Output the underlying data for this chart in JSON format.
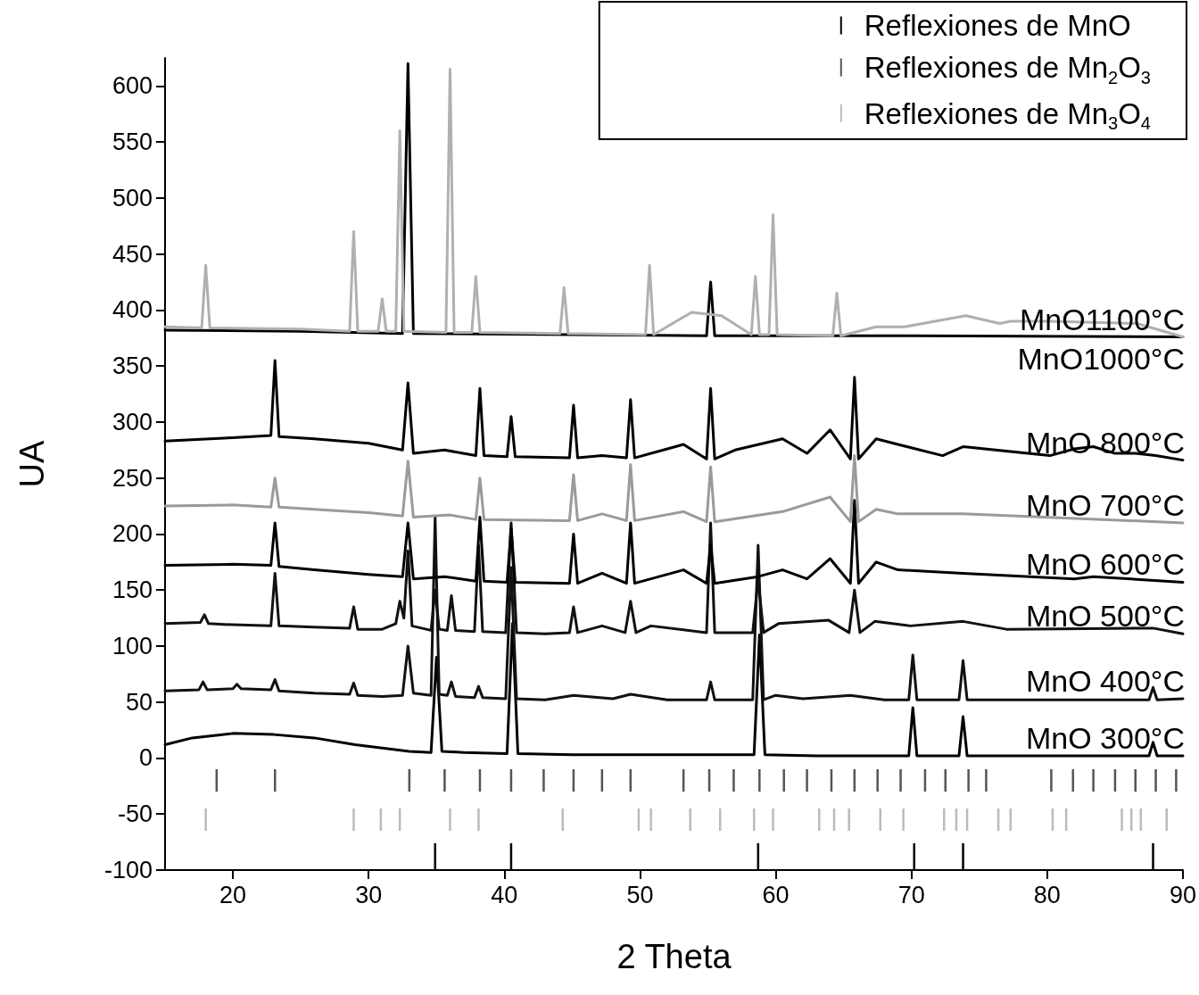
{
  "chart_data": {
    "type": "line",
    "xlabel": "2 Theta",
    "ylabel": "UA",
    "xlim": [
      15,
      90
    ],
    "xticks": [
      20,
      30,
      40,
      50,
      60,
      70,
      80,
      90
    ],
    "ylim": [
      -100,
      625
    ],
    "yticks": [
      -100,
      -50,
      0,
      50,
      100,
      150,
      200,
      250,
      300,
      350,
      400,
      450,
      500,
      550,
      600
    ],
    "grid": false,
    "legend": "top right",
    "marker": "none",
    "series": [
      {
        "name": "MnO 300°C",
        "color": "#000000",
        "x": [
          15,
          17,
          20,
          23,
          26,
          29,
          31,
          33,
          34.6,
          35.0,
          35.4,
          37,
          40.2,
          40.6,
          41.0,
          45,
          50,
          55,
          58.4,
          58.8,
          59.2,
          63,
          67,
          69.8,
          70.1,
          70.4,
          73.5,
          73.8,
          74.1,
          80,
          87.5,
          87.8,
          88.1,
          90
        ],
        "values": [
          12,
          18,
          22,
          21,
          18,
          12,
          9,
          6,
          5,
          90,
          6,
          5,
          4,
          120,
          4,
          3,
          3,
          3,
          3,
          110,
          3,
          2,
          2,
          2,
          45,
          2,
          2,
          37,
          2,
          2,
          2,
          14,
          2,
          2
        ]
      },
      {
        "name": "MnO 400°C",
        "color": "#111111",
        "x": [
          15,
          17.5,
          17.8,
          18.1,
          20,
          20.3,
          20.6,
          22.8,
          23.1,
          23.4,
          26,
          28.6,
          28.9,
          29.2,
          31,
          32.5,
          32.9,
          33.3,
          34.6,
          34.9,
          35.2,
          35.8,
          36.1,
          36.4,
          37.8,
          38.1,
          38.4,
          40.1,
          40.5,
          40.9,
          43,
          45.1,
          48,
          49.3,
          52,
          54.9,
          55.2,
          55.5,
          58.3,
          58.7,
          59.1,
          60,
          62,
          65.5,
          68,
          69.8,
          70.1,
          70.4,
          73.5,
          73.8,
          74.1,
          80,
          87.5,
          87.8,
          88.1,
          90
        ],
        "values": [
          60,
          61,
          68,
          61,
          62,
          66,
          62,
          61,
          70,
          60,
          58,
          57,
          67,
          56,
          55,
          56,
          100,
          58,
          56,
          215,
          57,
          56,
          68,
          55,
          54,
          64,
          54,
          53,
          170,
          53,
          52,
          56,
          53,
          57,
          52,
          52,
          68,
          52,
          52,
          190,
          52,
          56,
          53,
          56,
          52,
          52,
          92,
          52,
          52,
          87,
          52,
          52,
          52,
          63,
          52,
          53
        ]
      },
      {
        "name": "MnO 500°C",
        "color": "#111111",
        "x": [
          15,
          17.6,
          17.9,
          18.2,
          20,
          22.8,
          23.1,
          23.4,
          26,
          28.6,
          28.9,
          29.2,
          31,
          32.0,
          32.3,
          32.6,
          32.9,
          33.2,
          34.6,
          34.9,
          35.2,
          35.8,
          36.1,
          36.4,
          37.8,
          38.1,
          38.4,
          40.1,
          40.5,
          40.9,
          43,
          44.8,
          45.1,
          45.4,
          47.2,
          48.9,
          49.3,
          49.7,
          50.8,
          54.9,
          55.2,
          55.5,
          58.3,
          58.7,
          59.1,
          60.2,
          63.9,
          65.4,
          65.8,
          66.2,
          67.3,
          69.9,
          73.8,
          77,
          87.8,
          90
        ],
        "values": [
          120,
          121,
          128,
          120,
          119,
          118,
          165,
          118,
          117,
          116,
          135,
          115,
          115,
          120,
          140,
          125,
          185,
          118,
          114,
          150,
          115,
          114,
          145,
          114,
          113,
          190,
          113,
          112,
          210,
          112,
          111,
          112,
          135,
          112,
          118,
          112,
          140,
          112,
          118,
          112,
          210,
          112,
          112,
          160,
          112,
          120,
          123,
          112,
          150,
          112,
          122,
          118,
          122,
          115,
          116,
          111
        ]
      },
      {
        "name": "MnO 600°C",
        "color": "#000000",
        "x": [
          15,
          20,
          22.8,
          23.1,
          23.4,
          26,
          30,
          32.5,
          32.9,
          33.3,
          35.6,
          37.9,
          38.2,
          38.5,
          40.2,
          40.5,
          40.8,
          44.8,
          45.1,
          45.4,
          47.2,
          49.0,
          49.3,
          49.6,
          53.2,
          54.9,
          55.2,
          55.5,
          58.7,
          60.5,
          62.3,
          64.0,
          65.5,
          65.8,
          66.1,
          67.4,
          69.0,
          73.8,
          82,
          83.4,
          90
        ],
        "values": [
          172,
          173,
          172,
          210,
          171,
          168,
          164,
          162,
          210,
          160,
          162,
          158,
          215,
          158,
          157,
          205,
          157,
          156,
          200,
          156,
          165,
          156,
          210,
          156,
          168,
          156,
          190,
          156,
          162,
          168,
          160,
          178,
          156,
          230,
          156,
          175,
          168,
          165,
          160,
          162,
          157
        ]
      },
      {
        "name": "MnO 700°C",
        "color": "#9a9a9a",
        "x": [
          15,
          20,
          22.8,
          23.1,
          23.4,
          26,
          30,
          32.5,
          32.9,
          33.3,
          36,
          37.9,
          38.2,
          38.5,
          44.8,
          45.1,
          45.4,
          47.2,
          49.0,
          49.3,
          49.6,
          53.2,
          54.9,
          55.2,
          55.5,
          60.5,
          64.0,
          65.5,
          65.8,
          66.1,
          67.4,
          69,
          73.8,
          90
        ],
        "values": [
          225,
          226,
          224,
          250,
          224,
          222,
          219,
          216,
          265,
          215,
          217,
          213,
          250,
          213,
          212,
          253,
          212,
          218,
          212,
          262,
          212,
          220,
          211,
          260,
          211,
          220,
          233,
          211,
          270,
          211,
          222,
          218,
          218,
          210
        ]
      },
      {
        "name": "MnO 800°C",
        "color": "#000000",
        "x": [
          15,
          20,
          22.8,
          23.1,
          23.4,
          26,
          30,
          32.5,
          32.9,
          33.3,
          35.6,
          37.9,
          38.2,
          38.5,
          40.2,
          40.5,
          40.8,
          44.8,
          45.1,
          45.4,
          47.2,
          49.0,
          49.3,
          49.6,
          53.2,
          54.9,
          55.2,
          55.5,
          57,
          60.5,
          62.3,
          64.0,
          65.5,
          65.8,
          66.1,
          67.4,
          69.0,
          72.3,
          73.8,
          80.2,
          82,
          83.4,
          85,
          86.5,
          88,
          90
        ],
        "values": [
          283,
          286,
          288,
          355,
          287,
          285,
          281,
          275,
          335,
          272,
          275,
          270,
          330,
          270,
          269,
          305,
          269,
          268,
          315,
          268,
          270,
          268,
          320,
          268,
          280,
          267,
          330,
          267,
          275,
          285,
          272,
          293,
          267,
          340,
          267,
          285,
          280,
          270,
          278,
          270,
          276,
          278,
          272,
          272,
          270,
          266
        ]
      },
      {
        "name": "MnO1000°C",
        "color": "#000000",
        "x": [
          15,
          25,
          32.5,
          32.9,
          33.3,
          45,
          54.9,
          55.2,
          55.5,
          70,
          90
        ],
        "values": [
          382,
          381,
          379,
          620,
          379,
          378,
          377,
          425,
          377,
          377,
          376
        ]
      },
      {
        "name": "MnO1100°C",
        "color": "#b0b0b0",
        "x": [
          15,
          17.7,
          18.0,
          18.3,
          25,
          28.6,
          28.9,
          29.2,
          30.7,
          31.0,
          31.3,
          32.0,
          32.3,
          32.6,
          35.7,
          36.0,
          36.3,
          37.6,
          37.9,
          38.2,
          44.1,
          44.4,
          44.7,
          50.4,
          50.7,
          51.0,
          53.8,
          56.0,
          58.2,
          58.5,
          58.8,
          59.5,
          59.8,
          60.1,
          64.2,
          64.5,
          64.8,
          67.4,
          69.5,
          74.0,
          76.5,
          77.3,
          80.2,
          86.6,
          90
        ],
        "values": [
          385,
          384,
          440,
          384,
          383,
          381,
          470,
          381,
          381,
          410,
          381,
          381,
          560,
          381,
          380,
          615,
          380,
          380,
          430,
          380,
          379,
          420,
          379,
          378,
          440,
          378,
          398,
          395,
          378,
          430,
          378,
          378,
          485,
          378,
          377,
          415,
          377,
          385,
          385,
          395,
          388,
          390,
          390,
          388,
          376
        ]
      },
      {
        "name": "Reflexiones de MnO",
        "type": "bar",
        "color": "#000000",
        "x": [
          34.9,
          40.5,
          58.7,
          70.2,
          73.8,
          87.8
        ],
        "base": [
          -100,
          -100,
          -100,
          -100,
          -100,
          -100
        ],
        "values": [
          24,
          24,
          24,
          24,
          24,
          24
        ]
      },
      {
        "name": "Reflexiones de Mn$_{2}$O$_{3}$",
        "type": "bar",
        "color": "#555555",
        "x": [
          18.8,
          23.1,
          33.0,
          35.6,
          38.2,
          40.5,
          42.9,
          45.1,
          47.2,
          49.3,
          53.2,
          55.1,
          56.9,
          58.8,
          60.6,
          62.3,
          64.1,
          65.8,
          67.5,
          69.2,
          71.0,
          72.5,
          74.2,
          75.5,
          80.3,
          81.9,
          83.4,
          85.0,
          86.5,
          88.0,
          89.5
        ],
        "base": [
          -30,
          -30,
          -30,
          -30,
          -30,
          -30,
          -30,
          -30,
          -30,
          -30,
          -30,
          -30,
          -30,
          -30,
          -30,
          -30,
          -30,
          -30,
          -30,
          -30,
          -30,
          -30,
          -30,
          -30,
          -30,
          -30,
          -30,
          -30,
          -30,
          -30,
          -30
        ],
        "values": [
          20,
          20,
          20,
          20,
          20,
          20,
          20,
          20,
          20,
          20,
          20,
          20,
          20,
          20,
          20,
          20,
          20,
          20,
          20,
          20,
          20,
          20,
          20,
          20,
          20,
          20,
          20,
          20,
          20,
          20,
          20
        ]
      },
      {
        "name": "Reflexiones de Mn$_{3}$O$_{4}$",
        "type": "bar",
        "color": "#bbbbbb",
        "x": [
          18.0,
          28.9,
          30.9,
          32.3,
          36.0,
          38.1,
          44.3,
          49.9,
          50.8,
          53.7,
          55.9,
          58.4,
          59.8,
          63.2,
          64.3,
          65.4,
          67.7,
          69.4,
          72.4,
          73.3,
          74.1,
          76.4,
          77.3,
          80.4,
          81.4,
          85.5,
          86.2,
          86.9,
          88.8
        ],
        "base": [
          -65,
          -65,
          -65,
          -65,
          -65,
          -65,
          -65,
          -65,
          -65,
          -65,
          -65,
          -65,
          -65,
          -65,
          -65,
          -65,
          -65,
          -65,
          -65,
          -65,
          -65,
          -65,
          -65,
          -65,
          -65,
          -65,
          -65,
          -65,
          -65
        ],
        "values": [
          20,
          20,
          20,
          20,
          20,
          20,
          20,
          20,
          20,
          20,
          20,
          20,
          20,
          20,
          20,
          20,
          20,
          20,
          20,
          20,
          20,
          20,
          20,
          20,
          20,
          20,
          20,
          20,
          20
        ]
      }
    ]
  }
}
